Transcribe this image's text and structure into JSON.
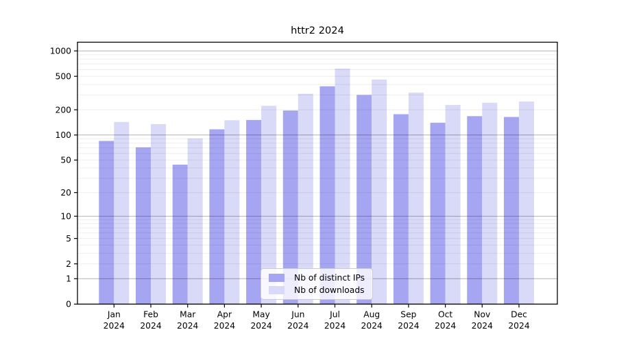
{
  "chart_data": {
    "type": "bar",
    "title": "httr2 2024",
    "categories": [
      "Jan 2024",
      "Feb 2024",
      "Mar 2024",
      "Apr 2024",
      "May 2024",
      "Jun 2024",
      "Jul 2024",
      "Aug 2024",
      "Sep 2024",
      "Oct 2024",
      "Nov 2024",
      "Dec 2024"
    ],
    "series": [
      {
        "name": "Nb of distinct IPs",
        "color": "#a5a5f2",
        "values": [
          85,
          71,
          44,
          117,
          151,
          196,
          380,
          300,
          177,
          140,
          168,
          164
        ]
      },
      {
        "name": "Nb of downloads",
        "color": "#d9d9f8",
        "values": [
          143,
          135,
          91,
          150,
          223,
          310,
          617,
          458,
          320,
          228,
          243,
          250
        ]
      }
    ],
    "xlabel": "",
    "ylabel": "",
    "yscale": "log10(1+x)",
    "ylim": [
      0,
      1200
    ],
    "y_ticks": [
      0,
      1,
      2,
      5,
      10,
      20,
      50,
      100,
      200,
      500,
      1000
    ],
    "y_tick_labels": [
      "0",
      "1",
      "2",
      "5",
      "10",
      "20",
      "50",
      "100",
      "200",
      "500",
      "1000"
    ],
    "y_major_grid": [
      1,
      10,
      100,
      1000
    ],
    "y_minor_grid": [
      2,
      3,
      4,
      5,
      6,
      7,
      8,
      9,
      20,
      30,
      40,
      50,
      60,
      70,
      80,
      90,
      200,
      300,
      400,
      500,
      600,
      700,
      800,
      900
    ],
    "grid": true,
    "legend_position": "bottom-center",
    "colors": {
      "axis": "#000000",
      "major_grid": "rgba(0,0,0,0.30)",
      "minor_grid": "rgba(0,0,0,0.07)",
      "background": "#ffffff",
      "legend_border": "#cbcbcb"
    }
  }
}
